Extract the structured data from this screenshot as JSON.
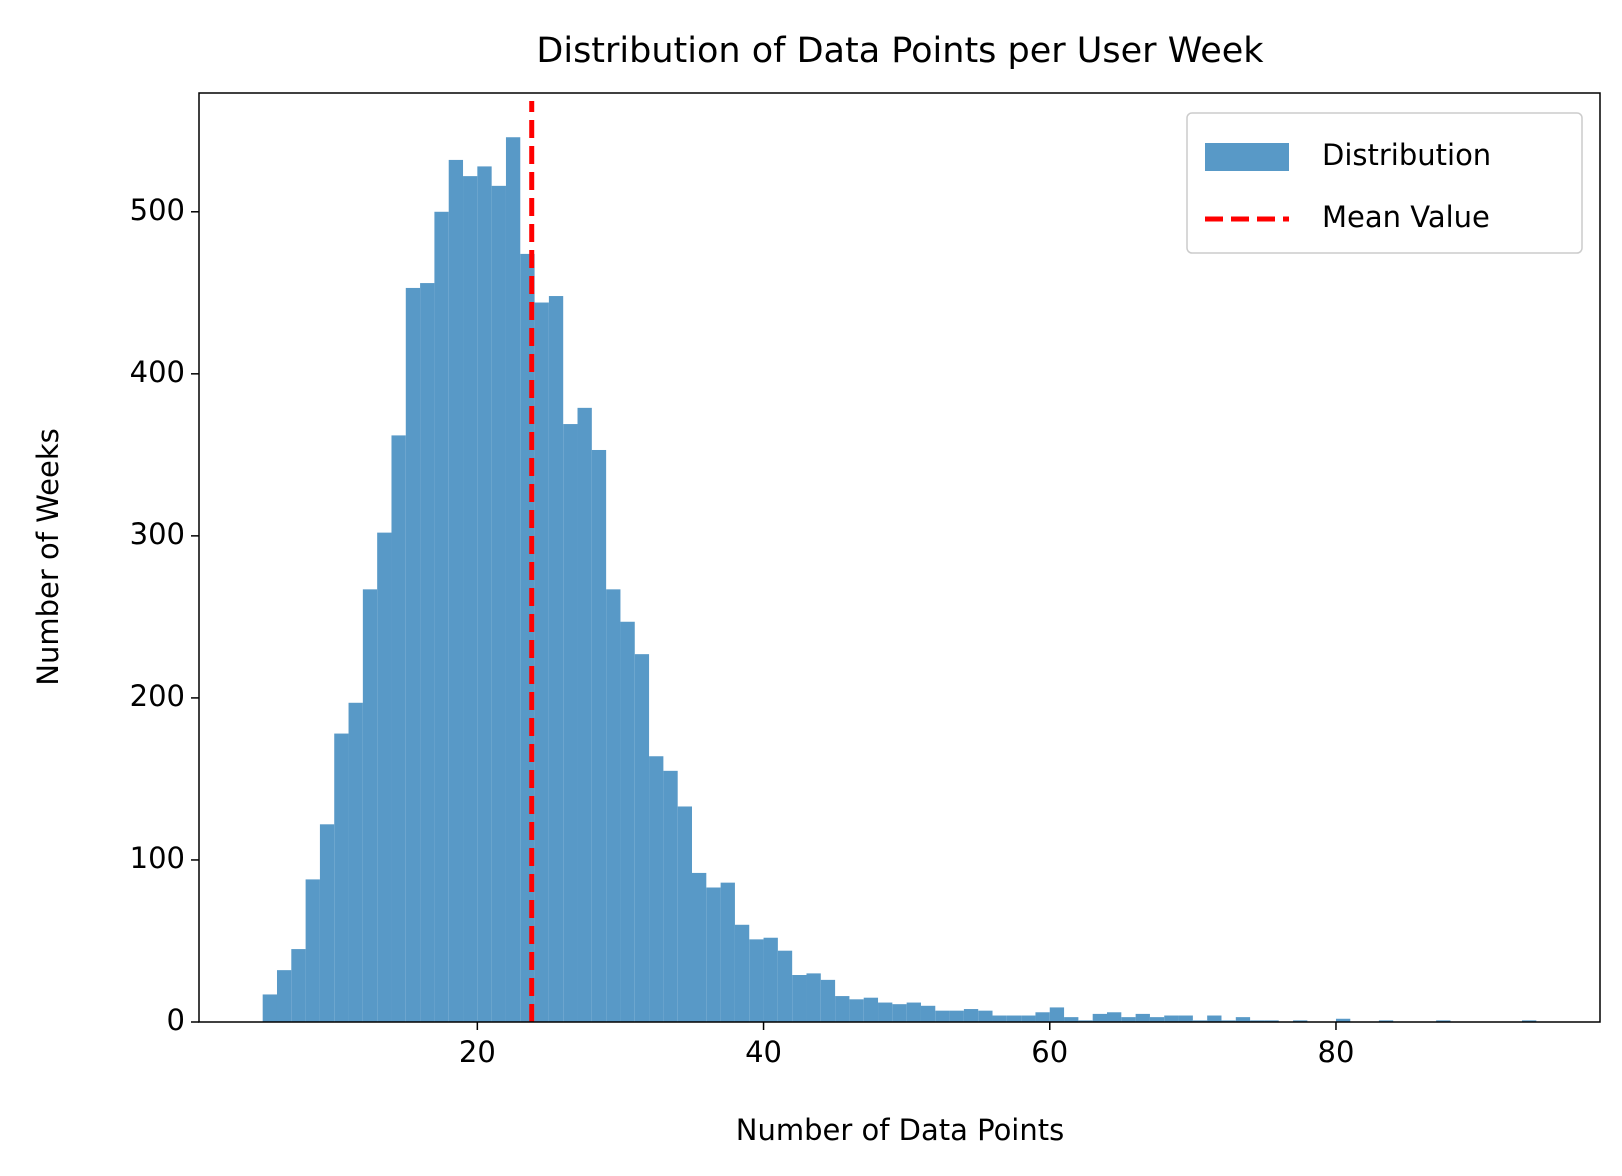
{
  "chart_data": {
    "type": "histogram",
    "title": "Distribution of Data Points per User Week",
    "x_label": "Number of Data Points",
    "y_label": "Number of Weeks",
    "name": "Distribution",
    "color": "#5899c7",
    "bins": [
      5,
      6,
      7,
      8,
      9,
      10,
      11,
      12,
      13,
      14,
      15,
      16,
      17,
      18,
      19,
      20,
      21,
      22,
      23,
      24,
      25,
      26,
      27,
      28,
      29,
      30,
      31,
      32,
      33,
      34,
      35,
      36,
      37,
      38,
      39,
      40,
      41,
      42,
      43,
      44,
      45,
      46,
      47,
      48,
      49,
      50,
      51,
      52,
      53,
      54,
      55,
      56,
      57,
      58,
      59,
      60,
      61,
      62,
      63,
      64,
      65,
      66,
      67,
      68,
      69,
      70,
      71,
      72,
      73,
      74,
      75,
      76,
      77,
      78,
      79,
      80,
      81,
      82,
      83,
      84,
      85,
      86,
      87,
      88,
      89,
      90,
      91,
      92,
      93,
      94
    ],
    "values": [
      17,
      32,
      45,
      88,
      122,
      178,
      197,
      267,
      302,
      362,
      453,
      456,
      500,
      532,
      522,
      528,
      516,
      546,
      474,
      444,
      448,
      369,
      379,
      353,
      267,
      247,
      227,
      164,
      155,
      133,
      92,
      83,
      86,
      60,
      51,
      52,
      44,
      29,
      30,
      26,
      16,
      14,
      15,
      12,
      11,
      12,
      10,
      7,
      7,
      8,
      7,
      4,
      4,
      4,
      6,
      9,
      3,
      1,
      5,
      6,
      3,
      5,
      3,
      4,
      4,
      1,
      4,
      1,
      3,
      1,
      1,
      0,
      1,
      0,
      0,
      2,
      0,
      0,
      1,
      0,
      0,
      0,
      1,
      0,
      0,
      0,
      0,
      0,
      1
    ],
    "mean_line": {
      "name": "Mean Value",
      "color": "#ff0000",
      "x": 23.8
    },
    "xlim": [
      0.55,
      98.45
    ],
    "ylim": [
      0,
      573.3
    ],
    "xticks": [
      20,
      40,
      60,
      80
    ],
    "yticks": [
      0,
      100,
      200,
      300,
      400,
      500
    ],
    "legend": "upper right"
  }
}
